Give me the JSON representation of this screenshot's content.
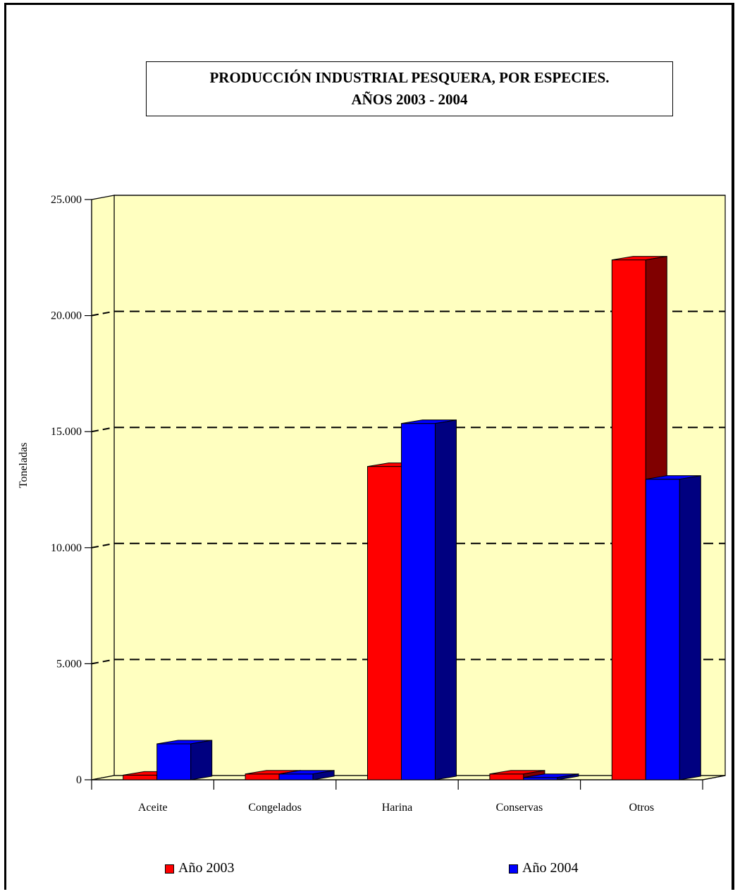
{
  "chart_data": {
    "type": "bar",
    "title_line1": "PRODUCCIÓN INDUSTRIAL PESQUERA, POR ESPECIES.",
    "title_line2": "AÑOS 2003 - 2004",
    "ylabel": "Toneladas",
    "xlabel": "",
    "ylim": [
      0,
      25000
    ],
    "y_ticks": [
      0,
      5000,
      10000,
      15000,
      20000,
      25000
    ],
    "y_tick_labels": [
      "0",
      "5.000",
      "10.000",
      "15.000",
      "20.000",
      "25.000"
    ],
    "categories": [
      "Aceite",
      "Congelados",
      "Harina",
      "Conservas",
      "Otros"
    ],
    "series": [
      {
        "name": "Año 2003",
        "color": "#ff0000",
        "side_color": "#800000",
        "values": [
          200,
          250,
          13500,
          250,
          22400
        ]
      },
      {
        "name": "Año 2004",
        "color": "#0000ff",
        "side_color": "#000080",
        "values": [
          1550,
          250,
          15350,
          100,
          12950
        ]
      }
    ],
    "grid": true,
    "legend_position": "bottom",
    "plot_background": "#ffffc0"
  }
}
